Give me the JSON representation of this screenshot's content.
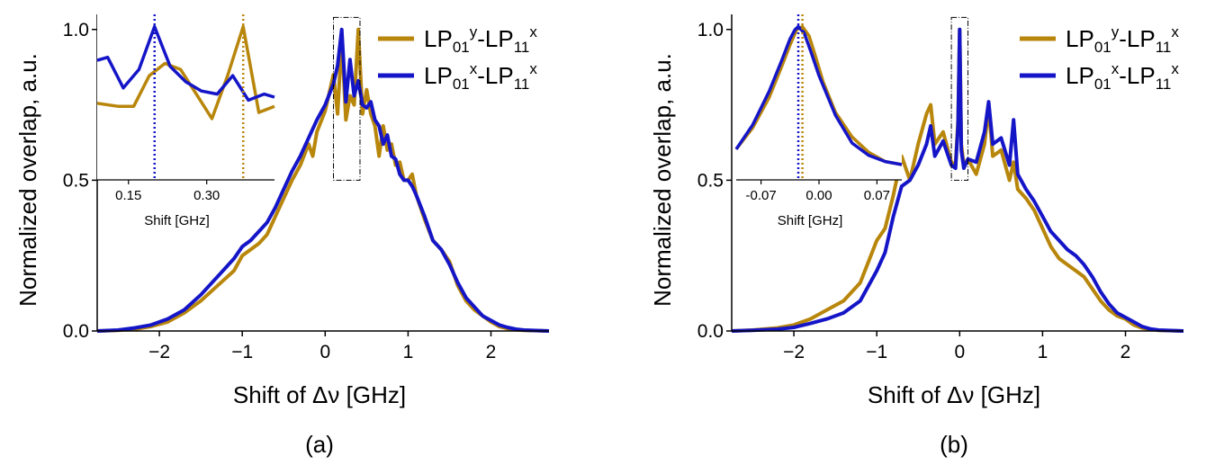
{
  "colors": {
    "gold": "#b8860b",
    "blue": "#1515c8"
  },
  "legend": {
    "s1": {
      "a": "LP",
      "b": "01",
      "c": "y",
      "d": "-LP",
      "e": "11",
      "f": "x"
    },
    "s2": {
      "a": "LP",
      "b": "01",
      "c": "x",
      "d": "-LP",
      "e": "11",
      "f": "x"
    }
  },
  "chart_data": [
    {
      "type": "line",
      "panel_label": "(a)",
      "xlabel": "Shift of Δν [GHz]",
      "ylabel": "Normalized overlap, a.u.",
      "xlim": [
        -2.75,
        2.7
      ],
      "ylim": [
        0,
        1.05
      ],
      "xticks": [
        -2,
        -1,
        0,
        1,
        2
      ],
      "xtick_labels": [
        "−2",
        "−1",
        "0",
        "1",
        "2"
      ],
      "yticks": [
        0.0,
        0.5,
        1.0
      ],
      "ytick_labels": [
        "0.0",
        "0.5",
        "1.0"
      ],
      "zoom_box": {
        "x": [
          0.1,
          0.42
        ],
        "y": [
          0.5,
          1.04
        ]
      },
      "series": [
        {
          "name": "LP01y-LP11x",
          "color": "gold",
          "x": [
            -2.75,
            -2.5,
            -2.3,
            -2.1,
            -1.9,
            -1.7,
            -1.5,
            -1.3,
            -1.1,
            -1.0,
            -0.9,
            -0.8,
            -0.7,
            -0.6,
            -0.5,
            -0.4,
            -0.3,
            -0.2,
            -0.15,
            -0.1,
            0.0,
            0.1,
            0.15,
            0.2,
            0.25,
            0.3,
            0.35,
            0.4,
            0.45,
            0.5,
            0.55,
            0.6,
            0.65,
            0.7,
            0.75,
            0.8,
            0.85,
            0.9,
            0.95,
            1.0,
            1.05,
            1.1,
            1.2,
            1.3,
            1.4,
            1.5,
            1.6,
            1.7,
            1.8,
            1.9,
            2.0,
            2.1,
            2.2,
            2.3,
            2.4,
            2.7
          ],
          "y": [
            0.0,
            0.002,
            0.006,
            0.015,
            0.03,
            0.06,
            0.1,
            0.15,
            0.2,
            0.25,
            0.27,
            0.29,
            0.32,
            0.38,
            0.44,
            0.5,
            0.55,
            0.62,
            0.58,
            0.66,
            0.73,
            0.85,
            0.72,
            0.97,
            0.7,
            0.78,
            0.75,
            1.0,
            0.72,
            0.8,
            0.72,
            0.68,
            0.58,
            0.68,
            0.6,
            0.62,
            0.55,
            0.56,
            0.5,
            0.5,
            0.52,
            0.45,
            0.37,
            0.3,
            0.27,
            0.23,
            0.15,
            0.1,
            0.07,
            0.05,
            0.03,
            0.015,
            0.008,
            0.004,
            0.002,
            0.0
          ]
        },
        {
          "name": "LP01x-LP11x",
          "color": "blue",
          "x": [
            -2.75,
            -2.5,
            -2.3,
            -2.1,
            -1.9,
            -1.7,
            -1.5,
            -1.3,
            -1.1,
            -1.0,
            -0.9,
            -0.8,
            -0.7,
            -0.6,
            -0.5,
            -0.4,
            -0.3,
            -0.2,
            -0.1,
            0.0,
            0.1,
            0.15,
            0.2,
            0.25,
            0.3,
            0.35,
            0.4,
            0.45,
            0.5,
            0.55,
            0.6,
            0.65,
            0.7,
            0.75,
            0.8,
            0.85,
            0.9,
            0.95,
            1.0,
            1.05,
            1.1,
            1.2,
            1.3,
            1.4,
            1.5,
            1.6,
            1.7,
            1.8,
            1.9,
            2.0,
            2.1,
            2.2,
            2.3,
            2.4,
            2.7
          ],
          "y": [
            0.0,
            0.003,
            0.01,
            0.02,
            0.04,
            0.07,
            0.12,
            0.18,
            0.24,
            0.28,
            0.3,
            0.33,
            0.36,
            0.41,
            0.47,
            0.53,
            0.58,
            0.64,
            0.7,
            0.75,
            0.82,
            0.88,
            1.0,
            0.76,
            0.9,
            0.78,
            0.83,
            0.75,
            0.74,
            0.76,
            0.7,
            0.68,
            0.62,
            0.65,
            0.58,
            0.57,
            0.52,
            0.5,
            0.5,
            0.48,
            0.45,
            0.38,
            0.3,
            0.27,
            0.22,
            0.16,
            0.11,
            0.08,
            0.05,
            0.035,
            0.02,
            0.012,
            0.006,
            0.003,
            0.0
          ]
        }
      ],
      "inset": {
        "xlabel": "Shift [GHz]",
        "xlim": [
          0.09,
          0.43
        ],
        "ylim": [
          0.5,
          1.04
        ],
        "xticks": [
          0.15,
          0.3
        ],
        "xtick_labels": [
          "0.15",
          "0.30"
        ],
        "markers": [
          {
            "x": 0.2,
            "color": "blue"
          },
          {
            "x": 0.37,
            "color": "gold"
          }
        ],
        "series": [
          {
            "name": "LP01y-LP11x",
            "color": "gold",
            "x": [
              0.09,
              0.13,
              0.16,
              0.19,
              0.22,
              0.25,
              0.28,
              0.31,
              0.34,
              0.37,
              0.4,
              0.43
            ],
            "y": [
              0.75,
              0.74,
              0.74,
              0.84,
              0.88,
              0.86,
              0.78,
              0.7,
              0.84,
              1.0,
              0.72,
              0.74
            ]
          },
          {
            "name": "LP01x-LP11x",
            "color": "blue",
            "x": [
              0.09,
              0.11,
              0.14,
              0.17,
              0.2,
              0.23,
              0.26,
              0.29,
              0.32,
              0.35,
              0.38,
              0.41,
              0.43
            ],
            "y": [
              0.89,
              0.9,
              0.8,
              0.86,
              1.0,
              0.87,
              0.82,
              0.79,
              0.78,
              0.84,
              0.76,
              0.78,
              0.77
            ]
          }
        ]
      }
    },
    {
      "type": "line",
      "panel_label": "(b)",
      "xlabel": "Shift of Δν [GHz]",
      "ylabel": "Normalized overlap, a.u.",
      "xlim": [
        -2.75,
        2.7
      ],
      "ylim": [
        0,
        1.05
      ],
      "xticks": [
        -2,
        -1,
        0,
        1,
        2
      ],
      "xtick_labels": [
        "−2",
        "−1",
        "0",
        "1",
        "2"
      ],
      "yticks": [
        0.0,
        0.5,
        1.0
      ],
      "ytick_labels": [
        "0.0",
        "0.5",
        "1.0"
      ],
      "zoom_box": {
        "x": [
          -0.1,
          0.1
        ],
        "y": [
          0.5,
          1.04
        ]
      },
      "series": [
        {
          "name": "LP01y-LP11x",
          "color": "gold",
          "x": [
            -2.75,
            -2.5,
            -2.2,
            -2.0,
            -1.8,
            -1.6,
            -1.4,
            -1.2,
            -1.0,
            -0.9,
            -0.8,
            -0.7,
            -0.6,
            -0.5,
            -0.4,
            -0.35,
            -0.3,
            -0.2,
            -0.1,
            -0.05,
            -0.02,
            0.0,
            0.02,
            0.05,
            0.1,
            0.2,
            0.3,
            0.35,
            0.4,
            0.5,
            0.6,
            0.65,
            0.7,
            0.8,
            0.9,
            1.0,
            1.1,
            1.2,
            1.3,
            1.4,
            1.5,
            1.6,
            1.7,
            1.8,
            1.9,
            2.0,
            2.1,
            2.2,
            2.3,
            2.4,
            2.7
          ],
          "y": [
            0.0,
            0.003,
            0.01,
            0.02,
            0.04,
            0.07,
            0.1,
            0.16,
            0.3,
            0.34,
            0.45,
            0.58,
            0.5,
            0.62,
            0.72,
            0.75,
            0.62,
            0.66,
            0.56,
            0.55,
            0.7,
            1.0,
            0.62,
            0.55,
            0.57,
            0.52,
            0.62,
            0.74,
            0.58,
            0.6,
            0.5,
            0.56,
            0.47,
            0.44,
            0.4,
            0.34,
            0.28,
            0.24,
            0.22,
            0.2,
            0.18,
            0.14,
            0.1,
            0.07,
            0.05,
            0.04,
            0.02,
            0.01,
            0.005,
            0.002,
            0.0
          ]
        },
        {
          "name": "LP01x-LP11x",
          "color": "blue",
          "x": [
            -2.75,
            -2.5,
            -2.2,
            -2.0,
            -1.8,
            -1.6,
            -1.4,
            -1.2,
            -1.0,
            -0.9,
            -0.8,
            -0.7,
            -0.6,
            -0.5,
            -0.4,
            -0.35,
            -0.3,
            -0.2,
            -0.1,
            -0.05,
            -0.02,
            0.0,
            0.02,
            0.05,
            0.1,
            0.2,
            0.3,
            0.35,
            0.4,
            0.5,
            0.6,
            0.65,
            0.7,
            0.8,
            0.9,
            1.0,
            1.1,
            1.2,
            1.3,
            1.4,
            1.5,
            1.6,
            1.7,
            1.8,
            1.9,
            2.0,
            2.1,
            2.2,
            2.3,
            2.4,
            2.7
          ],
          "y": [
            0.0,
            0.002,
            0.006,
            0.012,
            0.025,
            0.04,
            0.06,
            0.1,
            0.2,
            0.26,
            0.38,
            0.48,
            0.5,
            0.55,
            0.62,
            0.68,
            0.58,
            0.63,
            0.55,
            0.54,
            0.68,
            1.0,
            0.6,
            0.54,
            0.57,
            0.56,
            0.66,
            0.76,
            0.62,
            0.64,
            0.55,
            0.7,
            0.52,
            0.47,
            0.43,
            0.38,
            0.33,
            0.3,
            0.27,
            0.25,
            0.22,
            0.18,
            0.13,
            0.09,
            0.06,
            0.045,
            0.03,
            0.015,
            0.007,
            0.003,
            0.0
          ]
        }
      ],
      "inset": {
        "xlabel": "Shift [GHz]",
        "xlim": [
          -0.1,
          0.1
        ],
        "ylim": [
          0.5,
          1.04
        ],
        "xticks": [
          -0.07,
          0.0,
          0.07
        ],
        "xtick_labels": [
          "-0.07",
          "0.00",
          "0.07"
        ],
        "markers": [
          {
            "x": -0.025,
            "color": "blue"
          },
          {
            "x": -0.02,
            "color": "gold"
          }
        ],
        "series": [
          {
            "name": "LP01y-LP11x",
            "color": "gold",
            "x": [
              -0.1,
              -0.08,
              -0.06,
              -0.045,
              -0.035,
              -0.027,
              -0.02,
              -0.012,
              -0.005,
              0.005,
              0.02,
              0.04,
              0.06,
              0.08,
              0.1
            ],
            "y": [
              0.6,
              0.67,
              0.77,
              0.87,
              0.94,
              0.99,
              1.0,
              0.97,
              0.91,
              0.82,
              0.72,
              0.64,
              0.59,
              0.56,
              0.55
            ]
          },
          {
            "name": "LP01x-LP11x",
            "color": "blue",
            "x": [
              -0.1,
              -0.08,
              -0.06,
              -0.045,
              -0.035,
              -0.029,
              -0.025,
              -0.018,
              -0.01,
              0.0,
              0.02,
              0.04,
              0.06,
              0.08,
              0.1
            ],
            "y": [
              0.6,
              0.68,
              0.79,
              0.89,
              0.96,
              0.99,
              1.0,
              0.98,
              0.92,
              0.84,
              0.71,
              0.62,
              0.58,
              0.56,
              0.55
            ]
          }
        ]
      }
    }
  ]
}
